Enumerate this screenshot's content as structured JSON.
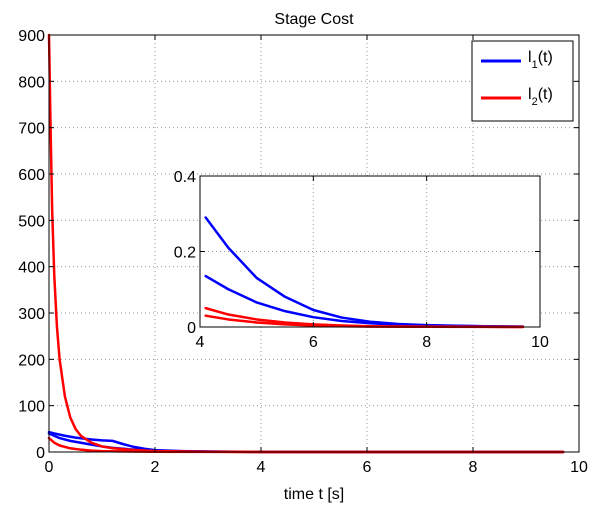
{
  "chart_data": [
    {
      "type": "line",
      "title": "Stage Cost",
      "xlabel": "time t [s]",
      "ylabel": "",
      "xlim": [
        0,
        10
      ],
      "ylim": [
        0,
        900
      ],
      "xticks": [
        "0",
        "2",
        "4",
        "6",
        "8",
        "10"
      ],
      "yticks": [
        "0",
        "100",
        "200",
        "300",
        "400",
        "500",
        "600",
        "700",
        "800",
        "900"
      ],
      "grid": true,
      "legend": {
        "placement": "top-right",
        "entries": [
          {
            "label": "l",
            "subscript": "1",
            "suffix": "(t)",
            "color": "#0000ff"
          },
          {
            "label": "l",
            "subscript": "2",
            "suffix": "(t)",
            "color": "#ff0000"
          }
        ]
      },
      "series": [
        {
          "name": "l1(t)",
          "color": "#0000ff",
          "x": [
            0,
            0.1,
            0.3,
            0.5,
            0.8,
            1.0,
            1.2,
            1.4,
            1.6,
            1.8,
            2.0,
            2.5,
            3.0,
            4.0,
            6.0,
            8.0,
            9.7
          ],
          "y": [
            43,
            40,
            35,
            31,
            27,
            25,
            24,
            17,
            11,
            7,
            4,
            2,
            1,
            0.3,
            0.05,
            0.01,
            0
          ]
        },
        {
          "name": "l1(t)",
          "color": "#0000ff",
          "x": [
            0,
            0.2,
            0.4,
            0.6,
            0.8,
            1.0,
            1.2,
            1.5,
            2.0,
            2.5,
            3.0,
            4.0,
            6.0,
            8.0,
            9.7
          ],
          "y": [
            40,
            30,
            24,
            20,
            16,
            12,
            9,
            6,
            3,
            1.5,
            0.7,
            0.2,
            0.03,
            0.005,
            0
          ]
        },
        {
          "name": "l2(t)",
          "color": "#ff0000",
          "x": [
            0,
            0.03,
            0.06,
            0.1,
            0.15,
            0.2,
            0.3,
            0.4,
            0.5,
            0.6,
            0.8,
            1.0,
            1.2,
            1.5,
            2.0,
            3.0,
            4.0,
            6.0,
            8.0,
            9.7
          ],
          "y": [
            900,
            700,
            520,
            380,
            270,
            200,
            120,
            75,
            50,
            35,
            20,
            12,
            8,
            5,
            2,
            0.5,
            0.1,
            0.02,
            0.005,
            0
          ]
        },
        {
          "name": "l2(t)",
          "color": "#ff0000",
          "x": [
            0,
            0.1,
            0.2,
            0.4,
            0.6,
            0.8,
            1.0,
            1.5,
            2.0,
            3.0,
            4.0,
            6.0,
            8.0,
            9.7
          ],
          "y": [
            30,
            20,
            14,
            8,
            5,
            3,
            2,
            1,
            0.5,
            0.2,
            0.05,
            0.01,
            0.002,
            0
          ]
        }
      ]
    },
    {
      "type": "line",
      "title": "",
      "xlim": [
        4,
        10
      ],
      "ylim": [
        0,
        0.4
      ],
      "xticks": [
        "4",
        "6",
        "8",
        "10"
      ],
      "yticks": [
        "0",
        "0.2",
        "0.4"
      ],
      "grid": true,
      "series": [
        {
          "color": "#0000ff",
          "x": [
            4.1,
            4.5,
            5.0,
            5.5,
            6.0,
            6.5,
            7.0,
            7.5,
            8.0,
            9.0,
            9.7
          ],
          "y": [
            0.29,
            0.21,
            0.13,
            0.08,
            0.045,
            0.025,
            0.014,
            0.008,
            0.005,
            0.002,
            0.001
          ]
        },
        {
          "color": "#0000ff",
          "x": [
            4.1,
            4.5,
            5.0,
            5.5,
            6.0,
            6.5,
            7.0,
            7.5,
            8.0,
            9.0,
            9.7
          ],
          "y": [
            0.135,
            0.1,
            0.065,
            0.042,
            0.026,
            0.016,
            0.01,
            0.006,
            0.004,
            0.002,
            0.001
          ]
        },
        {
          "color": "#ff0000",
          "x": [
            4.1,
            4.5,
            5.0,
            5.5,
            6.0,
            6.5,
            7.0,
            8.0,
            9.0,
            9.7
          ],
          "y": [
            0.05,
            0.033,
            0.02,
            0.012,
            0.007,
            0.004,
            0.002,
            0.001,
            0.0005,
            0.0002
          ]
        },
        {
          "color": "#ff0000",
          "x": [
            4.1,
            4.5,
            5.0,
            5.5,
            6.0,
            6.5,
            7.0,
            8.0,
            9.0,
            9.7
          ],
          "y": [
            0.03,
            0.02,
            0.012,
            0.007,
            0.004,
            0.002,
            0.001,
            0.0005,
            0.0002,
            0.0001
          ]
        }
      ]
    }
  ]
}
